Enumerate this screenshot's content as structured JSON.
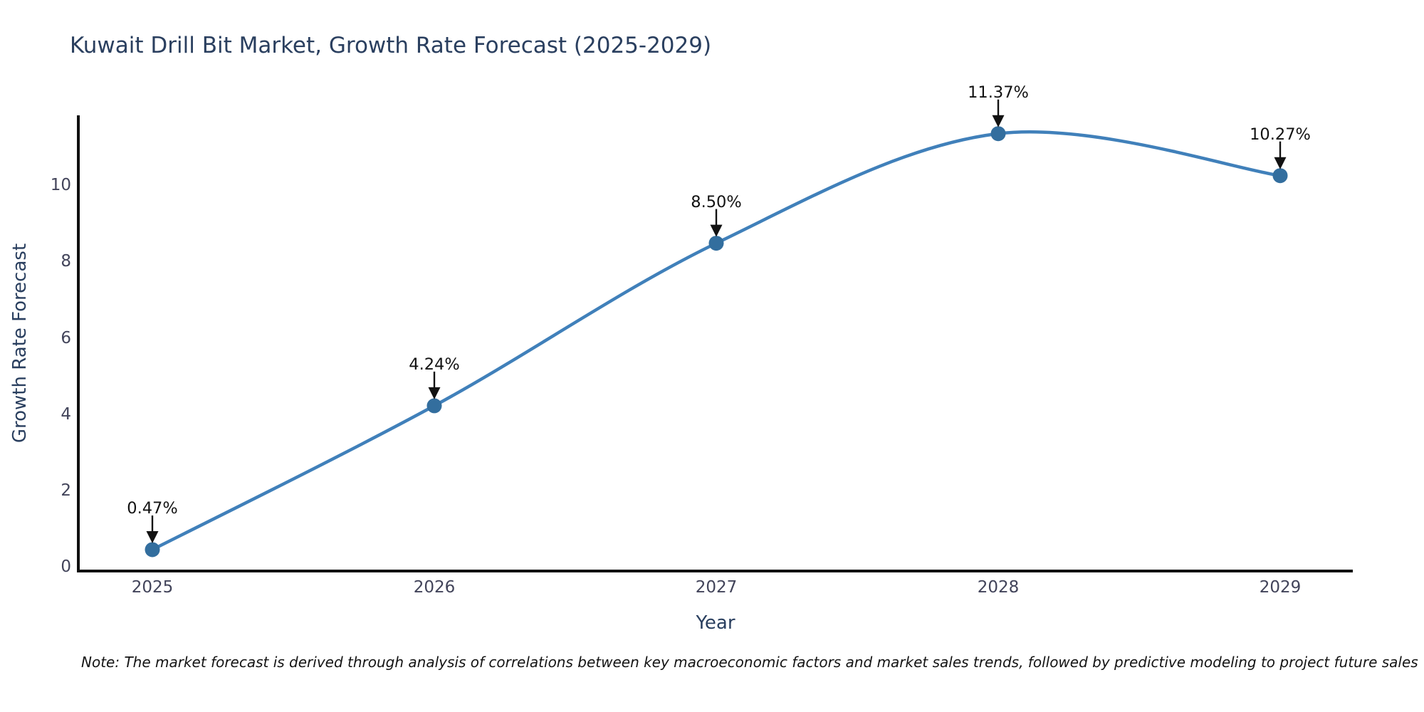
{
  "title": "Kuwait Drill Bit Market, Growth Rate Forecast (2025-2029)",
  "note": "Note: The market forecast is derived through analysis of correlations between key macroeconomic factors and market sales trends, followed by predictive modeling to project future sales",
  "chart_data": {
    "type": "line",
    "title": "Kuwait Drill Bit Market, Growth Rate Forecast (2025-2029)",
    "xlabel": "Year",
    "ylabel": "Growth Rate Forecast",
    "categories": [
      "2025",
      "2026",
      "2027",
      "2028",
      "2029"
    ],
    "series": [
      {
        "name": "Growth Rate Forecast",
        "values": [
          0.47,
          4.24,
          8.5,
          11.37,
          10.27
        ]
      }
    ],
    "point_labels": [
      "0.47%",
      "4.24%",
      "8.50%",
      "11.37%",
      "10.27%"
    ],
    "yticks": [
      0,
      2,
      4,
      6,
      8,
      10
    ],
    "ylim": [
      -0.09,
      11.85
    ],
    "grid": false,
    "legend": "none",
    "line_shape": "spline",
    "annotation_arrows": "down",
    "colors": {
      "line": "#4080ba",
      "marker": "#336e9e",
      "annotation": "#121212",
      "axis": "#0f0f0f",
      "title": "#2a3f5f",
      "tick": "#42445a",
      "background": "#ffffff"
    }
  }
}
